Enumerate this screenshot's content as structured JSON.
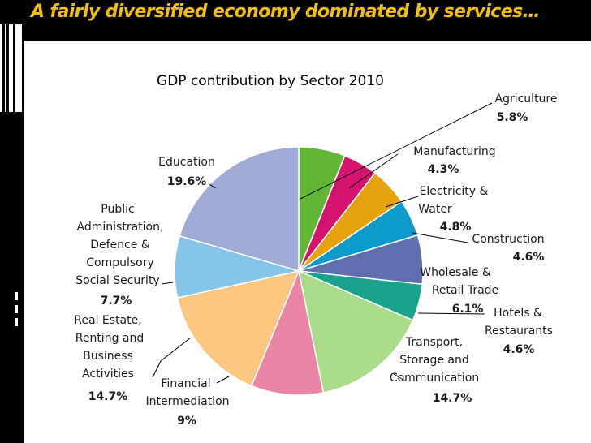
{
  "slide": {
    "title": "A fairly diversified economy dominated by services…"
  },
  "colors": {
    "background": "#000000",
    "title": "#f0c10c",
    "panel": "#ffffff"
  },
  "chart_data": {
    "type": "pie",
    "title": "GDP contribution by Sector 2010",
    "start_angle_deg": 0,
    "direction": "clockwise",
    "slices": [
      {
        "label": "Agriculture",
        "value": 5.8,
        "value_label": "5.8%",
        "color": "#63b534"
      },
      {
        "label": "Manufacturing",
        "value": 4.3,
        "value_label": "4.3%",
        "color": "#d4146e"
      },
      {
        "label": "Electricity & Water",
        "value": 4.8,
        "value_label": "4.8%",
        "color": "#e5a20d"
      },
      {
        "label": "Construction",
        "value": 4.6,
        "value_label": "4.6%",
        "color": "#0e9bcb"
      },
      {
        "label": "Wholesale & Retail Trade",
        "value": 6.1,
        "value_label": "6.1%",
        "color": "#5f6fae"
      },
      {
        "label": "Hotels & Restaurants",
        "value": 4.6,
        "value_label": "4.6%",
        "color": "#17a38e"
      },
      {
        "label": "Transport, Storage and Communication",
        "value": 14.7,
        "value_label": "14.7%",
        "color": "#a8dc88"
      },
      {
        "label": "Financial Intermediation",
        "value": 9.0,
        "value_label": "9%",
        "color": "#ea85a8"
      },
      {
        "label": "Real Estate, Renting and Business Activities",
        "value": 14.7,
        "value_label": "14.7%",
        "color": "#fbc67f"
      },
      {
        "label": "Public Administration, Defence & Compulsory Social Security",
        "value": 7.7,
        "value_label": "7.7%",
        "color": "#86c5e7"
      },
      {
        "label": "Education",
        "value": 19.6,
        "value_label": "19.6%",
        "color": "#a1acd6"
      }
    ]
  }
}
